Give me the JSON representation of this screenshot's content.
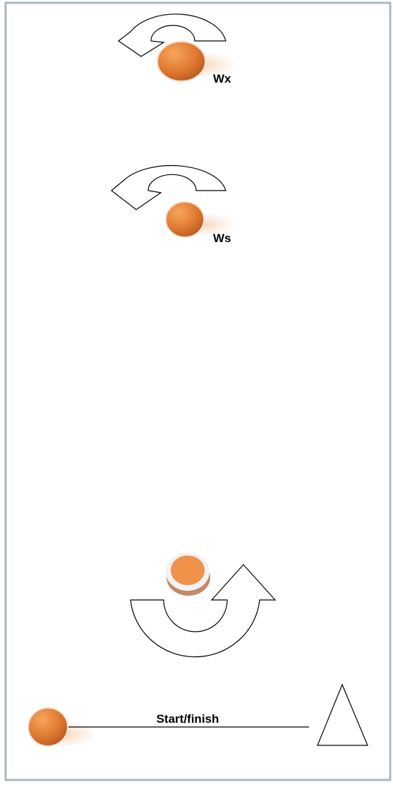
{
  "labels": {
    "ball_1": "Wx",
    "ball_2": "Ws",
    "start_line": "Start/finish"
  }
}
